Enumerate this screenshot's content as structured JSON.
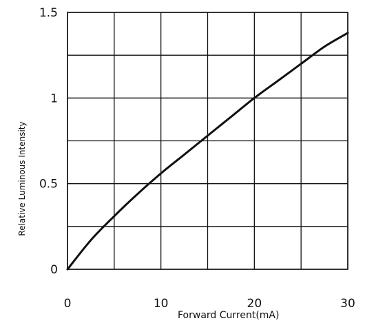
{
  "chart_data": {
    "type": "line",
    "xlabel": "Forward   Current(mA)",
    "ylabel": "Relative Luminous Intensity",
    "xlim": [
      0,
      30
    ],
    "ylim": [
      0,
      1.5
    ],
    "x_ticks": [
      "0",
      "10",
      "20",
      "30"
    ],
    "y_ticks": [
      "0",
      "0.5",
      "1",
      "1.5"
    ],
    "x_grid_step": 5,
    "y_grid_step": 0.25,
    "grid": true,
    "series": [
      {
        "x": [
          0,
          2.5,
          5,
          7.5,
          10,
          12.5,
          15,
          17.5,
          20,
          22.5,
          25,
          27.5,
          30
        ],
        "y": [
          0,
          0.17,
          0.31,
          0.44,
          0.56,
          0.67,
          0.78,
          0.89,
          1.0,
          1.1,
          1.2,
          1.3,
          1.38
        ],
        "color": "#111111"
      }
    ]
  }
}
